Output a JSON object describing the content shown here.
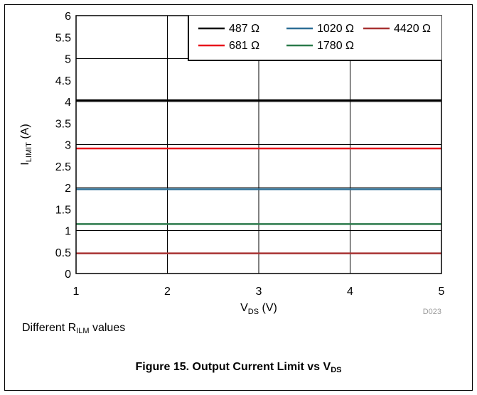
{
  "chart_data": {
    "type": "line",
    "xlabel_main": "V",
    "xlabel_sub": "DS",
    "xlabel_unit": " (V)",
    "ylabel_main": "I",
    "ylabel_sub": "LIMIT",
    "ylabel_unit": " (A)",
    "xlim": [
      1,
      5
    ],
    "ylim": [
      0,
      6
    ],
    "x_ticks": [
      "1",
      "2",
      "3",
      "4",
      "5"
    ],
    "y_ticks": [
      "0",
      "0.5",
      "1",
      "1.5",
      "2",
      "2.5",
      "3",
      "3.5",
      "4",
      "4.5",
      "5",
      "5.5",
      "6"
    ],
    "grid": true,
    "legend_position": "top-right",
    "series": [
      {
        "name": "487 Ω",
        "color": "#000000",
        "x": [
          1,
          5
        ],
        "y": [
          4.03,
          4.03
        ]
      },
      {
        "name": "1020 Ω",
        "color": "#2e6f96",
        "x": [
          1,
          5
        ],
        "y": [
          1.96,
          1.96
        ]
      },
      {
        "name": "4420 Ω",
        "color": "#a83232",
        "x": [
          1,
          5
        ],
        "y": [
          0.47,
          0.47
        ]
      },
      {
        "name": "681 Ω",
        "color": "#e8141c",
        "x": [
          1,
          5
        ],
        "y": [
          2.91,
          2.91
        ]
      },
      {
        "name": "1780 Ω",
        "color": "#2b7a4b",
        "x": [
          1,
          5
        ],
        "y": [
          1.15,
          1.15
        ]
      }
    ],
    "watermark": "D023"
  },
  "note": {
    "prefix": "Different R",
    "sub": "ILM",
    "suffix": " values"
  },
  "caption": {
    "text": "Figure 15. Output Current Limit vs V",
    "sub": "DS"
  }
}
